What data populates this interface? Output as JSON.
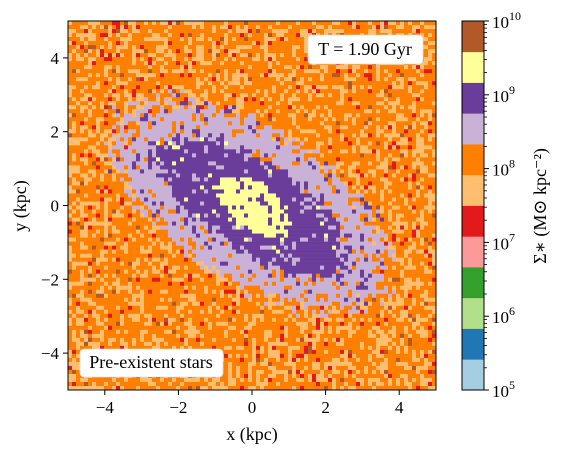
{
  "chart_data": {
    "type": "heatmap",
    "title": "",
    "xlabel": "x (kpc)",
    "ylabel": "y (kpc)",
    "xlim": [
      -5,
      5
    ],
    "ylim": [
      -5,
      5
    ],
    "xticks": [
      -4,
      -2,
      0,
      2,
      4
    ],
    "yticks": [
      -4,
      -2,
      0,
      2,
      4
    ],
    "xtick_labels": [
      "−4",
      "−2",
      "0",
      "2",
      "4"
    ],
    "ytick_labels": [
      "−4",
      "−2",
      "0",
      "2",
      "4"
    ],
    "grid": false,
    "annotations": {
      "time": "T = 1.90 Gyr",
      "population": "Pre-existent stars"
    },
    "structure": {
      "description_free": true,
      "bar_position_angle_deg": -33,
      "levels": [
        {
          "min": 1000000000.0,
          "color": "#ffff99",
          "semi_major_kpc": 1.15,
          "semi_minor_kpc": 0.65
        },
        {
          "min": 560000000.0,
          "color": "#6a3d9a",
          "semi_major_kpc": 2.95,
          "semi_minor_kpc": 1.2
        },
        {
          "min": 320000000.0,
          "color": "#cab2d6",
          "semi_major_kpc": 4.2,
          "semi_minor_kpc": 2.05
        },
        {
          "min": 100000000.0,
          "color": "#ff7f00",
          "semi_major_kpc": 9.0,
          "semi_minor_kpc": 9.0
        },
        {
          "min": 56000000.0,
          "color": "#fdbf6f",
          "semi_major_kpc": 99,
          "semi_minor_kpc": 99
        }
      ]
    },
    "colorbar": {
      "label": "Σ∗ (M⊙ kpc⁻²)",
      "scale": "log",
      "range": [
        100000.0,
        10000000000.0
      ],
      "tick_labels": [
        "10",
        "10",
        "10",
        "10",
        "10",
        "10"
      ],
      "tick_exponents": [
        "5",
        "6",
        "7",
        "8",
        "9",
        "10"
      ],
      "colors": [
        "#a6cee3",
        "#1f78b4",
        "#b2df8a",
        "#33a02c",
        "#fb9a99",
        "#e31a1c",
        "#fdbf6f",
        "#ff7f00",
        "#cab2d6",
        "#6a3d9a",
        "#ffff99",
        "#b15928"
      ]
    }
  }
}
